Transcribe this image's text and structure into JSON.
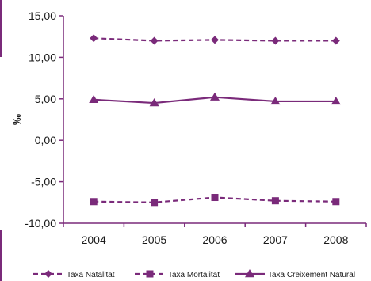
{
  "chart_data": {
    "type": "line",
    "x": [
      "2004",
      "2005",
      "2006",
      "2007",
      "2008"
    ],
    "ylabel": "‰",
    "xlabel": "",
    "ylim": [
      -10,
      15
    ],
    "yticks": [
      "15,00",
      "10,00",
      "5,00",
      "0,00",
      "-5,00",
      "-10,00"
    ],
    "ytick_values": [
      15,
      10,
      5,
      0,
      -5,
      -10
    ],
    "grid": false,
    "legend_position": "bottom",
    "series": [
      {
        "name": "Taxa Natalitat",
        "values": [
          12.3,
          12.0,
          12.1,
          12.0,
          12.0
        ],
        "color": "#7a2a7a",
        "marker": "diamond",
        "line_style": "dashed"
      },
      {
        "name": "Taxa Mortalitat",
        "values": [
          -7.4,
          -7.5,
          -6.9,
          -7.3,
          -7.4
        ],
        "color": "#7a2a7a",
        "marker": "square",
        "line_style": "dashed"
      },
      {
        "name": "Taxa Creixement Natural",
        "values": [
          4.9,
          4.5,
          5.2,
          4.7,
          4.7
        ],
        "color": "#7a2a7a",
        "marker": "triangle",
        "line_style": "solid"
      }
    ]
  },
  "colors": {
    "axis": "#7a2a7a",
    "left_accent": "#7a2a7a"
  }
}
